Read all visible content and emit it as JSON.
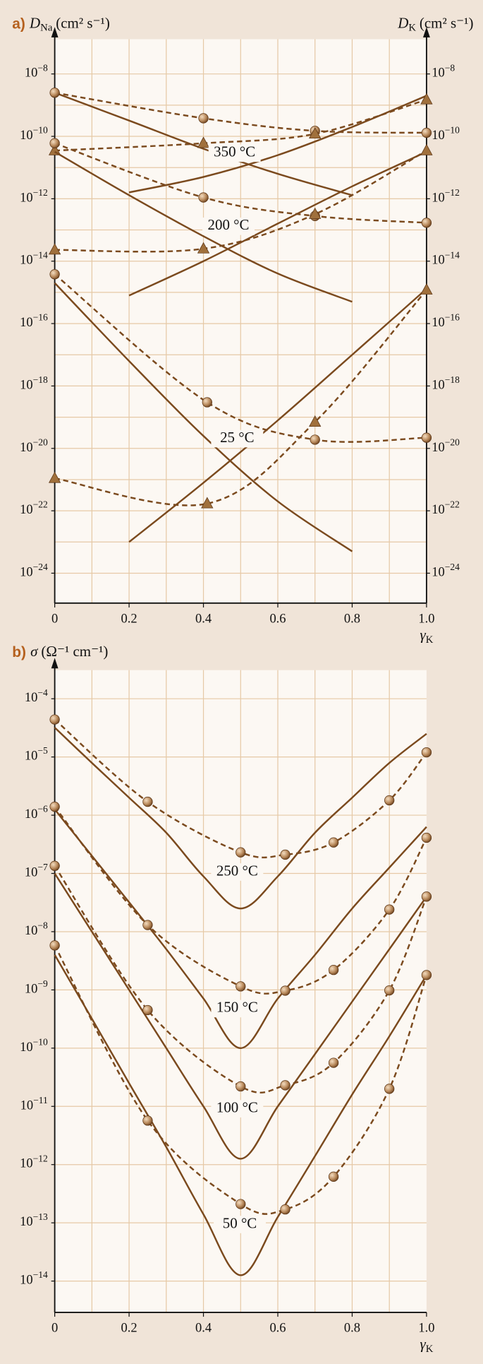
{
  "chart_data": [
    {
      "type": "line",
      "ylabel": {
        "panel": "a)",
        "symbol": "D",
        "subscript": "Na",
        "unit": "(cm² s⁻¹)"
      },
      "y2label": {
        "symbol": "D",
        "subscript": "K",
        "unit": "(cm² s⁻¹)"
      },
      "xlabel": {
        "symbol": "γ",
        "subscript": "K"
      },
      "log_scale": true,
      "color": "#7b4a1e",
      "xlim": [
        0,
        1
      ],
      "xticks": [
        0,
        0.2,
        0.4,
        0.6,
        0.8,
        {
          "value": 1,
          "label": "1.0"
        }
      ],
      "xgrid": [
        0.1,
        0.2,
        0.3,
        0.4,
        0.5,
        0.6,
        0.7,
        0.8,
        0.9
      ],
      "ylim": [
        1.1e-25,
        1.3e-07
      ],
      "yticks": [
        {
          "value": 1e-08,
          "label": "10−8"
        },
        {
          "value": 1e-10,
          "label": "10−10"
        },
        {
          "value": 1e-12,
          "label": "10−12"
        },
        {
          "value": 1e-14,
          "label": "10−14"
        },
        {
          "value": 1e-16,
          "label": "10−16"
        },
        {
          "value": 1e-18,
          "label": "10−18"
        },
        {
          "value": 1e-20,
          "label": "10−20"
        },
        {
          "value": 1e-22,
          "label": "10−22"
        },
        {
          "value": 1e-24,
          "label": "10−24"
        }
      ],
      "ygrid": [
        1e-08,
        1e-09,
        1e-10,
        1e-11,
        1e-12,
        1e-13,
        1e-14,
        1e-15,
        1e-16,
        1e-17,
        1e-18,
        1e-19,
        1e-20,
        1e-21,
        1e-22,
        1e-23,
        1e-24
      ],
      "y2lim": [
        1.1e-25,
        1.3e-07
      ],
      "y2ticks": [
        {
          "value": 1e-08,
          "label": "10−8"
        },
        {
          "value": 1e-10,
          "label": "10−10"
        },
        {
          "value": 1e-12,
          "label": "10−12"
        },
        {
          "value": 1e-14,
          "label": "10−14"
        },
        {
          "value": 1e-16,
          "label": "10−16"
        },
        {
          "value": 1e-18,
          "label": "10−18"
        },
        {
          "value": 1e-20,
          "label": "10−20"
        },
        {
          "value": 1e-22,
          "label": "10−22"
        },
        {
          "value": 1e-24,
          "label": "10−24"
        }
      ],
      "annotations": [
        "350 °C",
        "200 °C",
        "25 °C"
      ],
      "series": [
        {
          "style": "solid",
          "x": [
            0,
            0.2,
            0.4,
            0.6,
            0.8
          ],
          "values": [
            2.5e-09,
            3.2e-10,
            4e-11,
            6.3e-12,
            1.3e-12
          ]
        },
        {
          "style": "solid",
          "x": [
            0.2,
            0.4,
            0.6,
            0.8,
            1
          ],
          "values": [
            1.6e-12,
            5e-12,
            2.5e-11,
            2e-10,
            2e-09
          ]
        },
        {
          "style": "dashed",
          "marker": "circle",
          "x": [
            0,
            0.4,
            0.7,
            1
          ],
          "values": [
            2.5e-09,
            3.8e-10,
            1.5e-10,
            1.3e-10
          ]
        },
        {
          "style": "dashed",
          "marker": "triangle",
          "x": [
            0,
            0.4,
            0.7,
            1
          ],
          "values": [
            3.5e-11,
            6e-11,
            1.2e-10,
            1.5e-09
          ]
        },
        {
          "style": "solid",
          "x": [
            0,
            0.2,
            0.4,
            0.6,
            0.8
          ],
          "values": [
            3.2e-11,
            1.3e-12,
            6.3e-14,
            4e-15,
            5e-16
          ]
        },
        {
          "style": "solid",
          "x": [
            0.2,
            0.4,
            0.6,
            0.8,
            1
          ],
          "values": [
            7.9e-16,
            1e-14,
            1.6e-13,
            2.5e-12,
            3.2e-11
          ]
        },
        {
          "style": "dashed",
          "marker": "circle",
          "x": [
            0,
            0.4,
            0.7,
            1
          ],
          "values": [
            6e-11,
            1.1e-12,
            2.8e-13,
            1.7e-13
          ]
        },
        {
          "style": "dashed",
          "marker": "triangle",
          "x": [
            0,
            0.4,
            0.7,
            1
          ],
          "values": [
            2.3e-14,
            2.5e-14,
            3.2e-13,
            3.5e-11
          ]
        },
        {
          "style": "solid",
          "x": [
            0,
            0.2,
            0.4,
            0.6,
            0.8
          ],
          "values": [
            2e-15,
            6.3e-18,
            2.5e-20,
            2e-22,
            5e-24
          ]
        },
        {
          "style": "solid",
          "x": [
            0.2,
            0.4,
            0.6,
            0.8,
            1
          ],
          "values": [
            1e-23,
            7.9e-22,
            7.9e-20,
            1e-17,
            1.3e-15
          ]
        },
        {
          "style": "dashed",
          "marker": "circle",
          "x": [
            0,
            0.41,
            0.7,
            1
          ],
          "values": [
            3.8e-15,
            3e-19,
            1.9e-20,
            2.2e-20
          ]
        },
        {
          "style": "dashed",
          "marker": "triangle",
          "x": [
            0,
            0.41,
            0.7,
            1
          ],
          "values": [
            1.1e-21,
            1.7e-22,
            7e-20,
            1.2e-15
          ]
        }
      ]
    },
    {
      "type": "line",
      "ylabel": {
        "panel": "b)",
        "symbol": "σ",
        "unit": "(Ω⁻¹ cm⁻¹)"
      },
      "xlabel": {
        "symbol": "γ",
        "subscript": "K"
      },
      "log_scale": true,
      "color": "#7b4a1e",
      "xlim": [
        0,
        1
      ],
      "xticks": [
        0,
        0.2,
        0.4,
        0.6,
        0.8,
        {
          "value": 1,
          "label": "1.0"
        }
      ],
      "xgrid": [
        0.1,
        0.2,
        0.3,
        0.4,
        0.5,
        0.6,
        0.7,
        0.8,
        0.9
      ],
      "ylim": [
        2.9e-15,
        0.00031
      ],
      "yticks": [
        {
          "value": 0.0001,
          "label": "10−4"
        },
        {
          "value": 1e-05,
          "label": "10−5"
        },
        {
          "value": 1e-06,
          "label": "10−6"
        },
        {
          "value": 1e-07,
          "label": "10−7"
        },
        {
          "value": 1e-08,
          "label": "10−8"
        },
        {
          "value": 1e-09,
          "label": "10−9"
        },
        {
          "value": 1e-10,
          "label": "10−10"
        },
        {
          "value": 1e-11,
          "label": "10−11"
        },
        {
          "value": 1e-12,
          "label": "10−12"
        },
        {
          "value": 1e-13,
          "label": "10−13"
        },
        {
          "value": 1e-14,
          "label": "10−14"
        }
      ],
      "ygrid": [
        0.0001,
        1e-05,
        1e-06,
        1e-07,
        1e-08,
        1e-09,
        1e-10,
        1e-11,
        1e-12,
        1e-13,
        1e-14
      ],
      "annotations": [
        "250 °C",
        "150 °C",
        "100 °C",
        "50 °C"
      ],
      "series": [
        {
          "style": "solid",
          "x": [
            0,
            0.1,
            0.2,
            0.3,
            0.4,
            0.5,
            0.6,
            0.7,
            0.8,
            0.9,
            1
          ],
          "values": [
            3.2e-05,
            7.9e-06,
            2e-06,
            5e-07,
            8.9e-08,
            2.5e-08,
            8.9e-08,
            5e-07,
            2e-06,
            7.9e-06,
            2.5e-05
          ]
        },
        {
          "style": "dashed",
          "marker": "circle",
          "x": [
            0,
            0.25,
            0.5,
            0.62,
            0.75,
            0.9,
            1
          ],
          "values": [
            4.4e-05,
            1.7e-06,
            2.3e-07,
            2.1e-07,
            3.4e-07,
            1.8e-06,
            1.2e-05
          ]
        },
        {
          "style": "solid",
          "x": [
            0,
            0.1,
            0.2,
            0.3,
            0.4,
            0.5,
            0.6,
            0.7,
            0.8,
            0.9,
            1
          ],
          "values": [
            1.26e-06,
            2e-07,
            3.2e-08,
            5e-09,
            7.1e-10,
            1e-10,
            7.1e-10,
            4e-09,
            2.5e-08,
            1.26e-07,
            6.3e-07
          ]
        },
        {
          "style": "dashed",
          "marker": "circle",
          "x": [
            0,
            0.25,
            0.5,
            0.62,
            0.75,
            0.9,
            1
          ],
          "values": [
            1.4e-06,
            1.3e-08,
            1.15e-09,
            9.7e-10,
            2.2e-09,
            2.4e-08,
            4.1e-07
          ]
        },
        {
          "style": "solid",
          "x": [
            0,
            0.1,
            0.2,
            0.3,
            0.4,
            0.5,
            0.6,
            0.7,
            0.8,
            0.9,
            1
          ],
          "values": [
            1e-07,
            1e-08,
            1e-09,
            1e-10,
            1e-11,
            1.26e-12,
            1e-11,
            7.9e-11,
            6.3e-10,
            5e-09,
            4e-08
          ]
        },
        {
          "style": "dashed",
          "marker": "circle",
          "x": [
            0,
            0.25,
            0.5,
            0.62,
            0.75,
            0.9,
            1
          ],
          "values": [
            1.35e-07,
            4.5e-10,
            2.2e-11,
            2.3e-11,
            5.6e-11,
            9.8e-10,
            4e-08
          ]
        },
        {
          "style": "solid",
          "x": [
            0,
            0.1,
            0.2,
            0.3,
            0.4,
            0.5,
            0.6,
            0.7,
            0.8,
            0.9,
            1
          ],
          "values": [
            4e-09,
            3.2e-10,
            2.5e-11,
            2e-12,
            1.4e-13,
            1.26e-14,
            1.26e-13,
            1.4e-12,
            1.6e-11,
            1.6e-10,
            1.8e-09
          ]
        },
        {
          "style": "dashed",
          "marker": "circle",
          "x": [
            0,
            0.25,
            0.5,
            0.62,
            0.75,
            0.9,
            1
          ],
          "values": [
            5.8e-09,
            5.7e-12,
            2.1e-13,
            1.7e-13,
            6.2e-13,
            2e-11,
            1.8e-09
          ]
        }
      ]
    }
  ]
}
